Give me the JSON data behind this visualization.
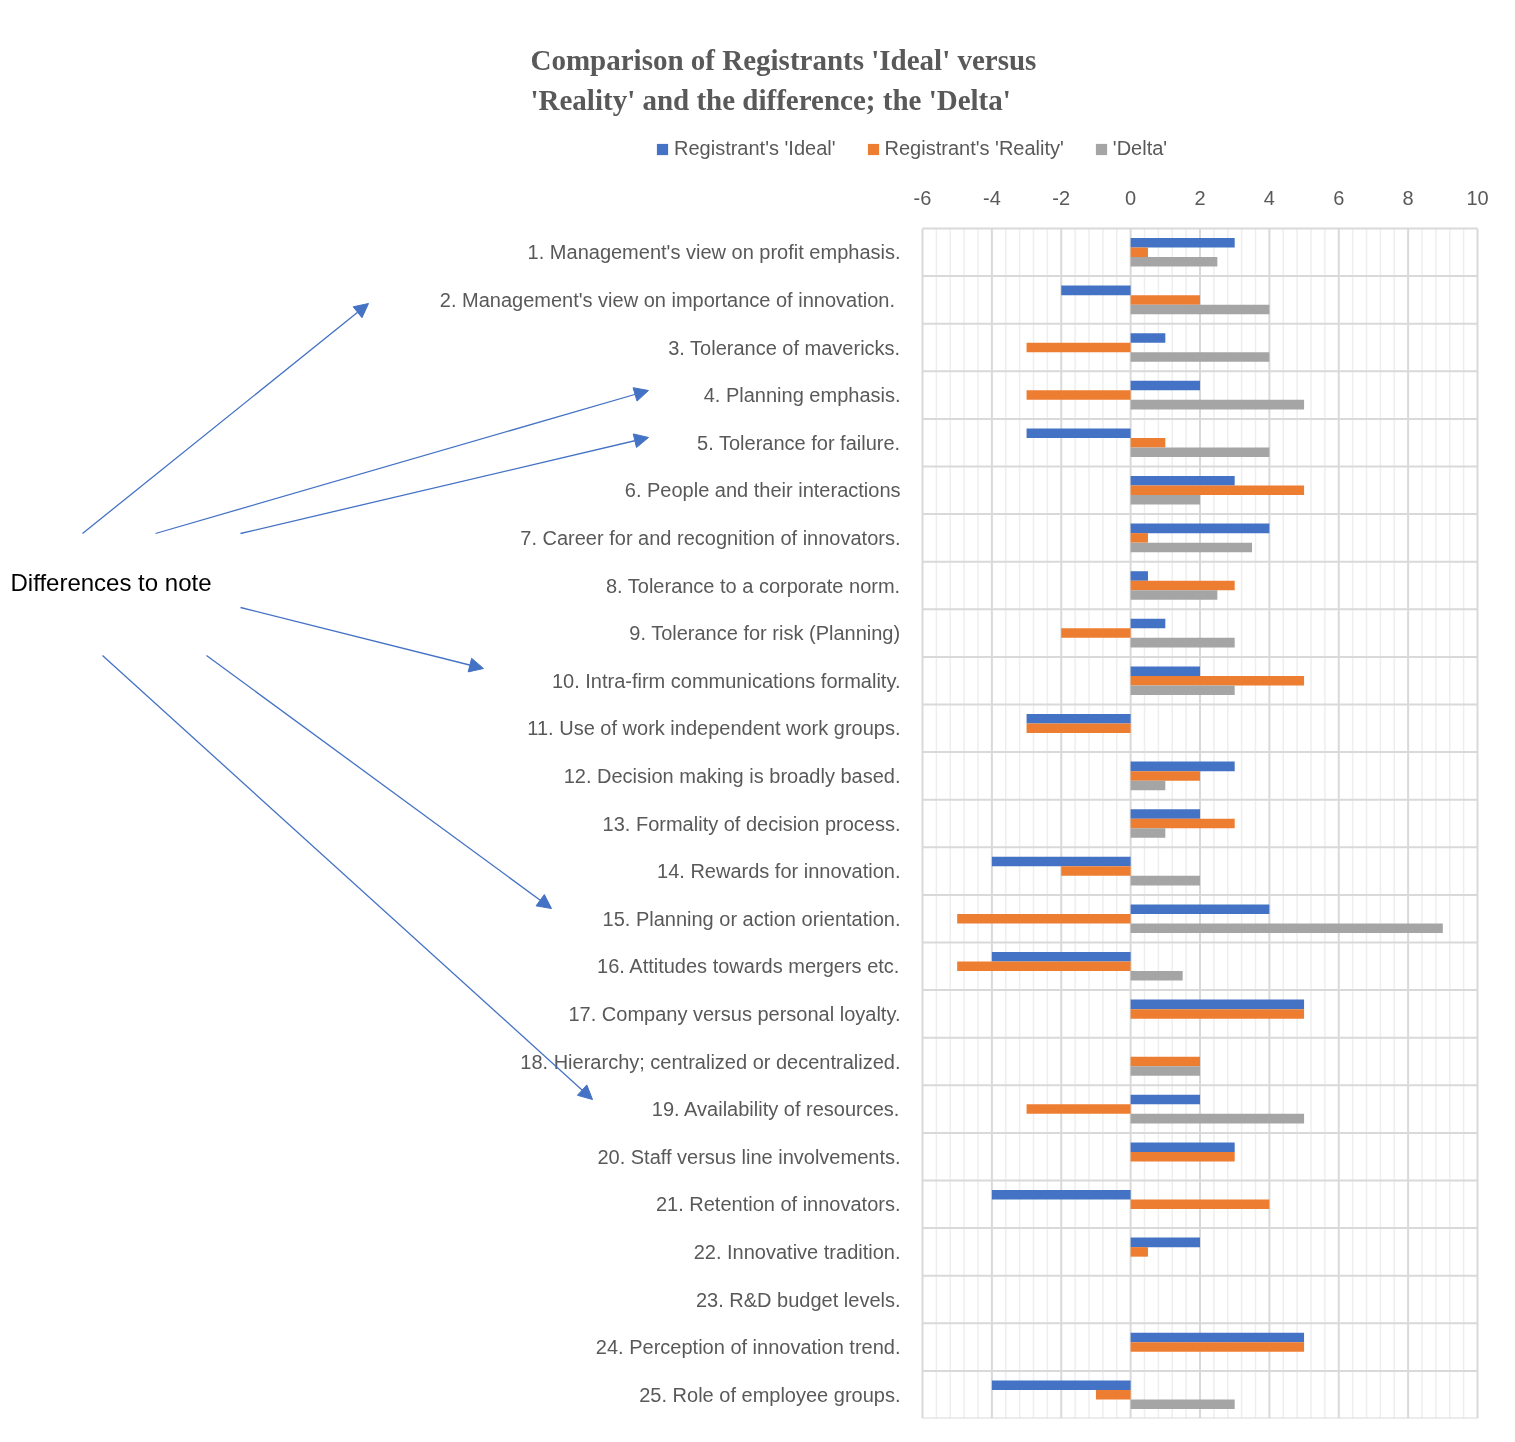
{
  "chart_data": {
    "type": "bar",
    "orientation": "horizontal",
    "title": "Comparison of Registrants 'Ideal' versus 'Reality' and the difference; the 'Delta'",
    "categories": [
      "1. Management's view on profit emphasis.",
      "2. Management's view on  importance of innovation.",
      "3. Tolerance of mavericks.",
      "4. Planning emphasis.",
      "5. Tolerance for failure.",
      "6. People and their interactions",
      "7. Career for and recognition of innovators.",
      "8. Tolerance to a corporate norm.",
      "9. Tolerance for risk (Planning)",
      "10. Intra-firm communications formality.",
      "11. Use of work independent work groups.",
      "12. Decision making is broadly based.",
      "13. Formality of decision process.",
      "14. Rewards for innovation.",
      "15. Planning or action orientation.",
      "16. Attitudes towards mergers etc.",
      "17. Company versus personal loyalty.",
      "18. Hierarchy; centralized or decentralized.",
      "19. Availability of resources.",
      "20. Staff versus line involvements.",
      "21. Retention of innovators.",
      "22. Innovative tradition.",
      "23. R&D budget levels.",
      "24. Perception of innovation trend.",
      "25. Role of employee groups."
    ],
    "series": [
      {
        "name": "Registrant's 'Ideal'",
        "color": "#4472c4",
        "values": [
          3,
          -2,
          1,
          2,
          -3,
          3,
          4,
          0.5,
          1,
          2,
          -3,
          3,
          2,
          -4,
          4,
          -4,
          5,
          null,
          2,
          3,
          -4,
          2,
          null,
          5,
          -4
        ]
      },
      {
        "name": "Registrant's 'Reality'",
        "color": "#ed7d31",
        "values": [
          0.5,
          2,
          -3,
          -3,
          1,
          5,
          0.5,
          3,
          -2,
          5,
          -3,
          2,
          3,
          -2,
          -5,
          -5,
          5,
          2,
          -3,
          3,
          4,
          0.5,
          null,
          5,
          -1
        ]
      },
      {
        "name": "'Delta'",
        "color": "#a5a5a5",
        "values": [
          2.5,
          4,
          4,
          5,
          4,
          2,
          3.5,
          2.5,
          3,
          3,
          null,
          1,
          1,
          2,
          9,
          1.5,
          null,
          2,
          5,
          null,
          null,
          null,
          null,
          null,
          3
        ]
      }
    ],
    "xlim": [
      -6,
      10
    ],
    "xticks": [
      -6,
      -4,
      -2,
      0,
      2,
      4,
      6,
      8,
      10
    ],
    "grid": true,
    "legend": "top",
    "annotations": [
      "Differences to note"
    ]
  }
}
